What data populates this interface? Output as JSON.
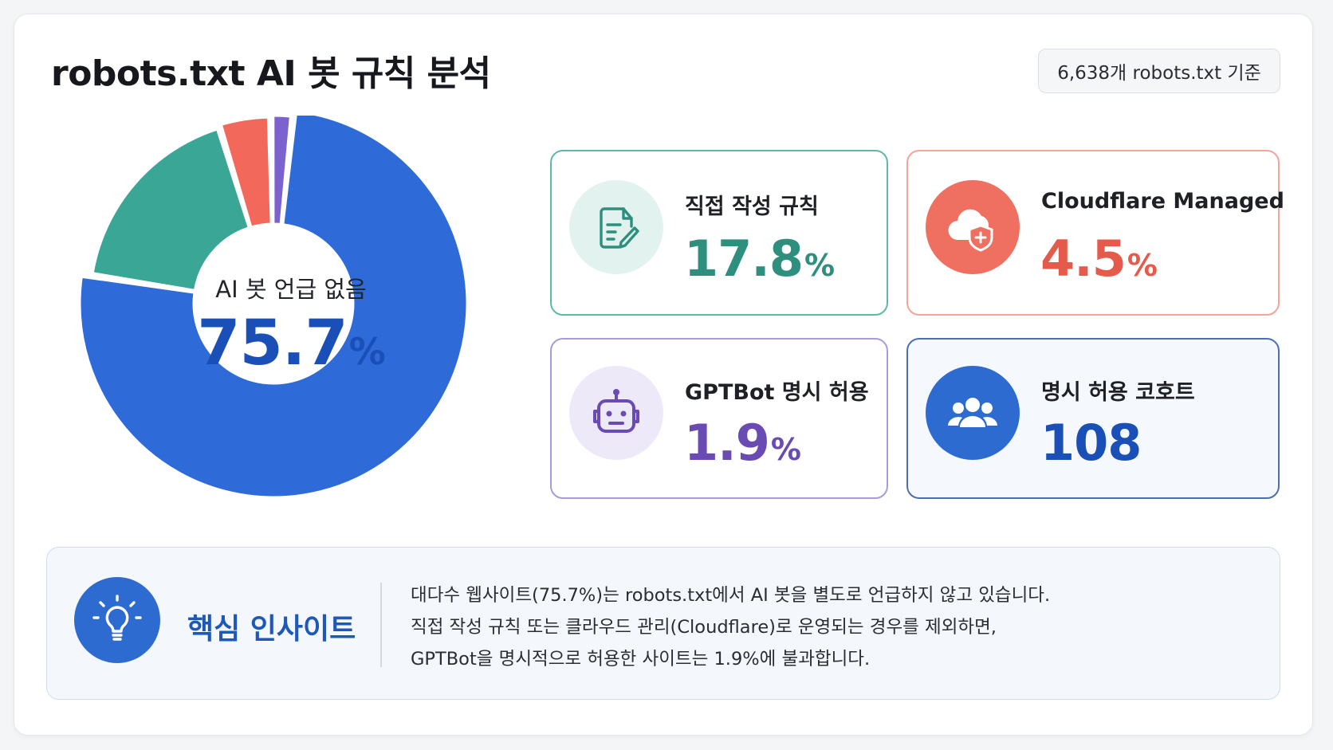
{
  "title": "robots.txt AI 봇 규칙 분석",
  "basis_badge": "6,638개 robots.txt 기준",
  "donut_center": {
    "label": "AI 봇 언급 없음",
    "value": "75.7",
    "unit": "%"
  },
  "stats": {
    "direct": {
      "label": "직접 작성 규칙",
      "value": "17.8",
      "unit": "%",
      "icon": "document-edit-icon"
    },
    "cloudflare": {
      "label": "Cloudflare Managed",
      "value": "4.5",
      "unit": "%",
      "icon": "cloud-shield-icon"
    },
    "gptbot": {
      "label": "GPTBot 명시 허용",
      "value": "1.9",
      "unit": "%",
      "icon": "robot-icon"
    },
    "cohort": {
      "label": "명시 허용 코호트",
      "value": "108",
      "unit": "",
      "icon": "users-icon"
    }
  },
  "insight": {
    "heading": "핵심 인사이트",
    "icon": "lightbulb-icon",
    "lines": [
      "대다수 웹사이트(75.7%)는 robots.txt에서 AI 봇을 별도로 언급하지 않고 있습니다.",
      "직접 작성 규칙 또는 클라우드 관리(Cloudflare)로 운영되는 경우를 제외하면,",
      "GPTBot을 명시적으로 허용한 사이트는 1.9%에 불과합니다."
    ]
  },
  "colors": {
    "no_mention": "#2e6bd8",
    "direct": "#3aa796",
    "cloudflare": "#f2685a",
    "gptbot": "#7b62cf"
  },
  "chart_data": {
    "type": "pie",
    "variant": "donut",
    "categories": [
      "AI 봇 언급 없음",
      "직접 작성 규칙",
      "Cloudflare Managed",
      "GPTBot 명시 허용"
    ],
    "values": [
      75.7,
      17.8,
      4.5,
      1.9
    ],
    "unit": "%",
    "title": "robots.txt AI 봇 규칙 분석",
    "legend": "none"
  }
}
